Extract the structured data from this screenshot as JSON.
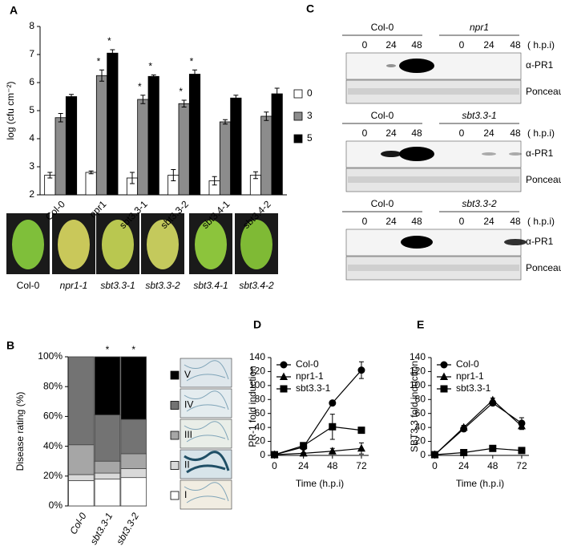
{
  "panel_labels": [
    "A",
    "B",
    "C",
    "D",
    "E"
  ],
  "leaf_labels": [
    "Col-0",
    "npr1-1",
    "sbt3.3-1",
    "sbt3.3-2",
    "sbt3.4-1",
    "sbt3.4-2"
  ],
  "blots": [
    {
      "groups": [
        "Col-0",
        "npr1"
      ],
      "times": [
        "0",
        "24",
        "48",
        "0",
        "24",
        "48"
      ],
      "unit": "( h.p.i)",
      "antibody": "α-PR1",
      "loading": "Ponceau"
    },
    {
      "groups": [
        "Col-0",
        "sbt3.3-1"
      ],
      "times": [
        "0",
        "24",
        "48",
        "0",
        "24",
        "48"
      ],
      "unit": "( h.p.i)",
      "antibody": "α-PR1",
      "loading": "Ponceau"
    },
    {
      "groups": [
        "Col-0",
        "sbt3.3-2"
      ],
      "times": [
        "0",
        "24",
        "48",
        "0",
        "24",
        "48"
      ],
      "unit": "( h.p.i)",
      "antibody": "α-PR1",
      "loading": "Ponceau"
    }
  ],
  "chart_data": [
    {
      "type": "bar",
      "y_label": "log (cfu cm⁻²)",
      "categories": [
        "Col-0",
        "npr1",
        "sbt3.3-1",
        "sbt3.3-2",
        "sbt3.4-1",
        "sbt3.4-2"
      ],
      "ylim": [
        2,
        8
      ],
      "yticks": [
        2,
        3,
        4,
        5,
        6,
        7,
        8
      ],
      "legend": "right",
      "series": [
        {
          "name": "0",
          "color": "#ffffff",
          "values": [
            2.7,
            2.8,
            2.6,
            2.7,
            2.5,
            2.7
          ],
          "errors": [
            0.1,
            0.05,
            0.2,
            0.2,
            0.15,
            0.12
          ],
          "annotations": [
            null,
            null,
            null,
            null,
            null,
            null
          ]
        },
        {
          "name": "3",
          "color": "#8c8c8c",
          "values": [
            4.75,
            6.25,
            5.4,
            5.25,
            4.6,
            4.8
          ],
          "errors": [
            0.15,
            0.2,
            0.15,
            0.12,
            0.08,
            0.15
          ],
          "annotations": [
            null,
            "*",
            "*",
            "*",
            null,
            null
          ]
        },
        {
          "name": "5",
          "color": "#000000",
          "values": [
            5.5,
            7.05,
            6.22,
            6.3,
            5.45,
            5.6
          ],
          "errors": [
            0.08,
            0.12,
            0.05,
            0.15,
            0.1,
            0.2
          ],
          "annotations": [
            null,
            "*",
            "*",
            "*",
            null,
            null
          ]
        }
      ]
    },
    {
      "type": "stacked_bar",
      "y_label": "Disease rating (%)",
      "categories": [
        "Col-0",
        "sbt3.3-1",
        "sbt3.3-2"
      ],
      "ylim": [
        0,
        100
      ],
      "yticks": [
        {
          "value": 0,
          "label": "0%"
        },
        {
          "value": 20,
          "label": "20%"
        },
        {
          "value": 40,
          "label": "40%"
        },
        {
          "value": 60,
          "label": "60%"
        },
        {
          "value": 80,
          "label": "80%"
        },
        {
          "value": 100,
          "label": "100%"
        }
      ],
      "annotations": [
        null,
        "*",
        "*"
      ],
      "legend": "right",
      "series": [
        {
          "name": "I",
          "color": "#ffffff",
          "values": [
            17,
            18,
            19
          ]
        },
        {
          "name": "II",
          "color": "#d9d9d9",
          "values": [
            4,
            4,
            6
          ]
        },
        {
          "name": "III",
          "color": "#a6a6a6",
          "values": [
            20,
            8,
            10
          ]
        },
        {
          "name": "IV",
          "color": "#737373",
          "values": [
            59,
            31,
            23
          ]
        },
        {
          "name": "V",
          "color": "#000000",
          "values": [
            0,
            39,
            42
          ]
        }
      ]
    },
    {
      "type": "line",
      "y_label": "PR-1 fold induction",
      "x_label": "Time (h.p.i)",
      "x": [
        0,
        24,
        48,
        72
      ],
      "xlim": [
        -3,
        78
      ],
      "xticks": [
        0,
        24,
        48,
        72
      ],
      "ylim": [
        0,
        140
      ],
      "yticks": [
        0,
        20,
        40,
        60,
        80,
        100,
        120,
        140
      ],
      "legend": "upper left",
      "series": [
        {
          "name": "Col-0",
          "color": "#000000",
          "marker": "circle",
          "values": [
            1,
            12,
            75,
            122
          ],
          "errors": [
            0.5,
            3,
            3,
            12
          ]
        },
        {
          "name": "npr1-1",
          "color": "#000000",
          "marker": "triangle",
          "values": [
            1,
            3,
            6,
            10
          ],
          "errors": [
            0.5,
            1,
            4,
            8
          ]
        },
        {
          "name": "sbt3.3-1",
          "color": "#000000",
          "marker": "square",
          "values": [
            1,
            14,
            41,
            36
          ],
          "errors": [
            0.5,
            4,
            18,
            3
          ]
        }
      ]
    },
    {
      "type": "line",
      "y_label": "SBT3.3 fold induction",
      "x_label": "Time (h.p.i)",
      "x": [
        0,
        24,
        48,
        72
      ],
      "xlim": [
        -3,
        78
      ],
      "xticks": [
        0,
        24,
        48,
        72
      ],
      "ylim": [
        0,
        140
      ],
      "yticks": [
        0,
        20,
        40,
        60,
        80,
        100,
        120,
        140
      ],
      "legend": "upper left",
      "series": [
        {
          "name": "Col-0",
          "color": "#000000",
          "marker": "circle",
          "values": [
            1,
            38,
            75,
            46
          ],
          "errors": [
            0.5,
            2,
            3,
            8
          ]
        },
        {
          "name": "npr1-1",
          "color": "#000000",
          "marker": "triangle",
          "values": [
            1,
            40,
            79,
            42
          ],
          "errors": [
            0.5,
            3,
            3,
            5
          ]
        },
        {
          "name": "sbt3.3-1",
          "color": "#000000",
          "marker": "square",
          "values": [
            1,
            4,
            10,
            7
          ],
          "errors": [
            0.5,
            1,
            3,
            2
          ]
        }
      ]
    }
  ]
}
